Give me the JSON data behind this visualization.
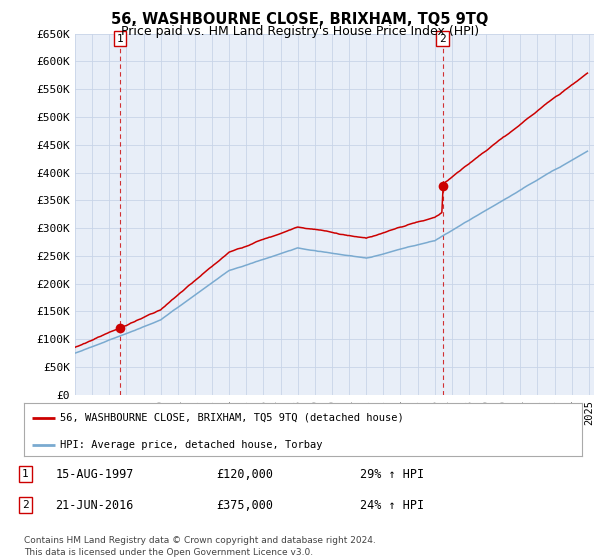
{
  "title": "56, WASHBOURNE CLOSE, BRIXHAM, TQ5 9TQ",
  "subtitle": "Price paid vs. HM Land Registry's House Price Index (HPI)",
  "title_fontsize": 10.5,
  "subtitle_fontsize": 9,
  "background_color": "#ffffff",
  "grid_color": "#c8d4e8",
  "plot_bg_color": "#e8eef8",
  "ylim": [
    0,
    650000
  ],
  "yticks": [
    0,
    50000,
    100000,
    150000,
    200000,
    250000,
    300000,
    350000,
    400000,
    450000,
    500000,
    550000,
    600000,
    650000
  ],
  "ytick_labels": [
    "£0",
    "£50K",
    "£100K",
    "£150K",
    "£200K",
    "£250K",
    "£300K",
    "£350K",
    "£400K",
    "£450K",
    "£500K",
    "£550K",
    "£600K",
    "£650K"
  ],
  "sale1_t": 1997.625,
  "sale1_price": 120000,
  "sale2_t": 2016.458,
  "sale2_price": 375000,
  "sale_dot_color": "#cc0000",
  "vline_color": "#cc0000",
  "hpi_line_color": "#7aaad0",
  "price_line_color": "#cc0000",
  "legend_label_price": "56, WASHBOURNE CLOSE, BRIXHAM, TQ5 9TQ (detached house)",
  "legend_label_hpi": "HPI: Average price, detached house, Torbay",
  "annotation1_date": "15-AUG-1997",
  "annotation1_price": "£120,000",
  "annotation1_hpi": "29% ↑ HPI",
  "annotation2_date": "21-JUN-2016",
  "annotation2_price": "£375,000",
  "annotation2_hpi": "24% ↑ HPI",
  "footer": "Contains HM Land Registry data © Crown copyright and database right 2024.\nThis data is licensed under the Open Government Licence v3.0."
}
